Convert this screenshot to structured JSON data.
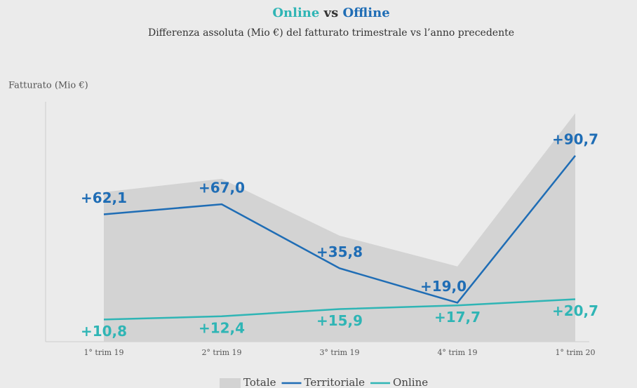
{
  "chart_data": {
    "type": "line",
    "title": [
      {
        "text": "Online",
        "color": "#2fb5b5"
      },
      {
        "text": "vs",
        "color": "#333333"
      },
      {
        "text": "Offline",
        "color": "#1f6db5"
      }
    ],
    "subtitle": "Differenza assoluta (Mio €) del fatturato trimestrale vs l’anno precedente",
    "y_label": "Fatturato (Mio €)",
    "categories": [
      "1° trim 19",
      "2° trim 19",
      "3° trim 19",
      "4° trim 19",
      "1° trim 20"
    ],
    "ylim": [
      0,
      117
    ],
    "series": [
      {
        "name": "Totale",
        "kind": "area",
        "color": "#d3d3d3",
        "values": [
          72.9,
          79.4,
          51.7,
          36.7,
          111.4
        ]
      },
      {
        "name": "Territoriale",
        "kind": "line",
        "color": "#1f6db5",
        "values": [
          62.1,
          67.0,
          35.8,
          19.0,
          90.7
        ],
        "value_labels": [
          "+62,1",
          "+67,0",
          "+35,8",
          "+19,0",
          "+90,7"
        ]
      },
      {
        "name": "Online",
        "kind": "line",
        "color": "#2fb5b5",
        "values": [
          10.8,
          12.4,
          15.9,
          17.7,
          20.7
        ],
        "value_labels": [
          "+10,8",
          "+12,4",
          "+15,9",
          "+17,7",
          "+20,7"
        ]
      }
    ]
  }
}
